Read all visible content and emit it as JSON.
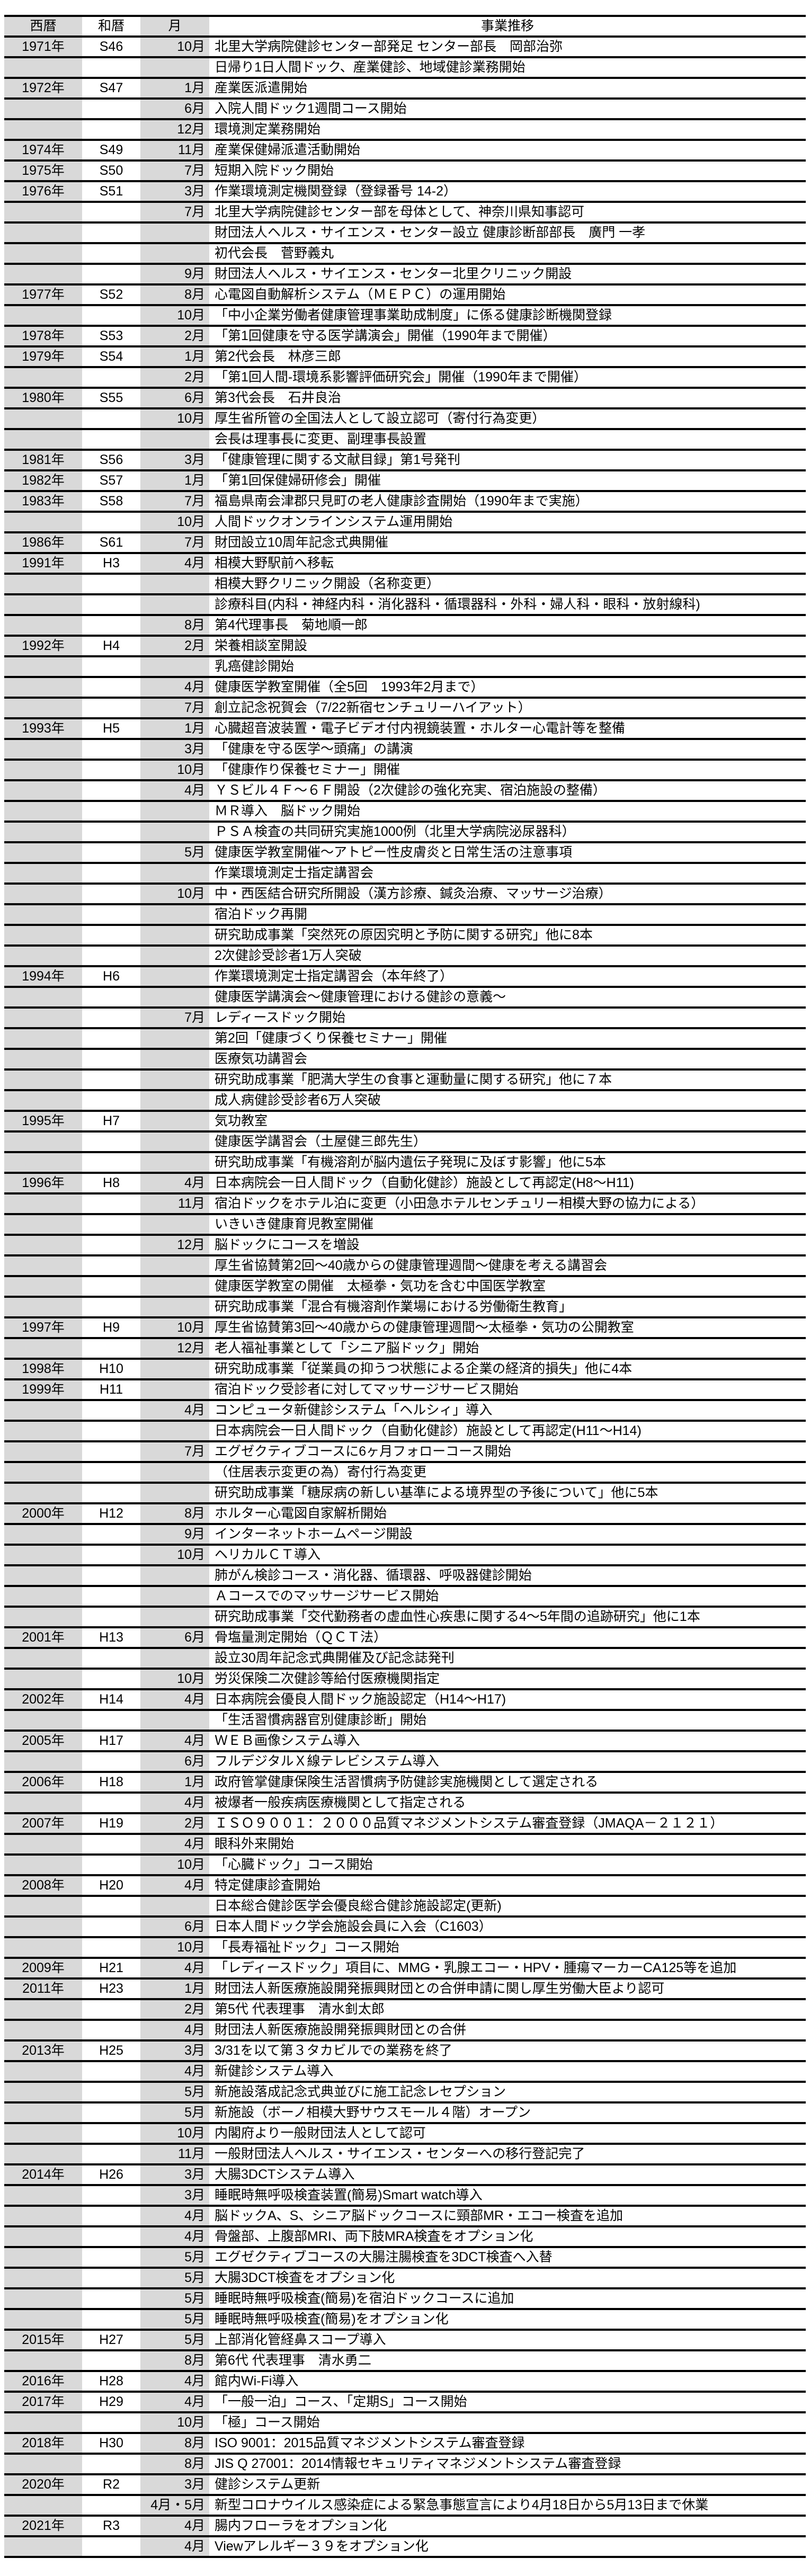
{
  "header": {
    "columns": [
      "西暦",
      "和暦",
      "月",
      "事業推移"
    ]
  },
  "rows": [
    {
      "year": "1971年",
      "era": "S46",
      "month": "10月",
      "text": "北里大学病院健診センター部発足 センター部長　岡部治弥"
    },
    {
      "year": "",
      "era": "",
      "month": "",
      "text": "日帰り1日人間ドック、産業健診、地域健診業務開始"
    },
    {
      "year": "1972年",
      "era": "S47",
      "month": "1月",
      "text": "産業医派遣開始"
    },
    {
      "year": "",
      "era": "",
      "month": "6月",
      "text": "入院人間ドック1週間コース開始"
    },
    {
      "year": "",
      "era": "",
      "month": "12月",
      "text": "環境測定業務開始"
    },
    {
      "year": "1974年",
      "era": "S49",
      "month": "11月",
      "text": "産業保健婦派遣活動開始"
    },
    {
      "year": "1975年",
      "era": "S50",
      "month": "7月",
      "text": "短期入院ドック開始"
    },
    {
      "year": "1976年",
      "era": "S51",
      "month": "3月",
      "text": "作業環境測定機関登録（登録番号 14-2）"
    },
    {
      "year": "",
      "era": "",
      "month": "7月",
      "text": "北里大学病院健診センター部を母体として、神奈川県知事認可"
    },
    {
      "year": "",
      "era": "",
      "month": "",
      "text": "財団法人ヘルス・サイエンス・センター設立 健康診断部部長　廣門 一孝"
    },
    {
      "year": "",
      "era": "",
      "month": "",
      "text": "初代会長　菅野義丸"
    },
    {
      "year": "",
      "era": "",
      "month": "9月",
      "text": "財団法人ヘルス・サイエンス・センター北里クリニック開設"
    },
    {
      "year": "1977年",
      "era": "S52",
      "month": "8月",
      "text": "心電図自動解析システム（ＭＥＰＣ）の運用開始"
    },
    {
      "year": "",
      "era": "",
      "month": "10月",
      "text": "「中小企業労働者健康管理事業助成制度」に係る健康診断機関登録"
    },
    {
      "year": "1978年",
      "era": "S53",
      "month": "2月",
      "text": "「第1回健康を守る医学講演会」開催（1990年まで開催）"
    },
    {
      "year": "1979年",
      "era": "S54",
      "month": "1月",
      "text": "第2代会長　林彦三郎"
    },
    {
      "year": "",
      "era": "",
      "month": "2月",
      "text": "「第1回人間-環境系影響評価研究会」開催（1990年まで開催）"
    },
    {
      "year": "1980年",
      "era": "S55",
      "month": "6月",
      "text": "第3代会長　石井良治"
    },
    {
      "year": "",
      "era": "",
      "month": "10月",
      "text": "厚生省所管の全国法人として設立認可（寄付行為変更）"
    },
    {
      "year": "",
      "era": "",
      "month": "",
      "text": "会長は理事長に変更、副理事長設置"
    },
    {
      "year": "1981年",
      "era": "S56",
      "month": "3月",
      "text": "「健康管理に関する文献目録」第1号発刊"
    },
    {
      "year": "1982年",
      "era": "S57",
      "month": "1月",
      "text": "「第1回保健婦研修会」開催"
    },
    {
      "year": "1983年",
      "era": "S58",
      "month": "7月",
      "text": "福島県南会津郡只見町の老人健康診査開始（1990年まで実施）"
    },
    {
      "year": "",
      "era": "",
      "month": "10月",
      "text": "人間ドックオンラインシステム運用開始"
    },
    {
      "year": "1986年",
      "era": "S61",
      "month": "7月",
      "text": "財団設立10周年記念式典開催"
    },
    {
      "year": "1991年",
      "era": "H3",
      "month": "4月",
      "text": "相模大野駅前へ移転"
    },
    {
      "year": "",
      "era": "",
      "month": "",
      "text": "相模大野クリニック開設（名称変更）"
    },
    {
      "year": "",
      "era": "",
      "month": "",
      "text": "診療科目(内科・神経内科・消化器科・循環器科・外科・婦人科・眼科・放射線科)"
    },
    {
      "year": "",
      "era": "",
      "month": "8月",
      "text": "第4代理事長　菊地順一郎"
    },
    {
      "year": "1992年",
      "era": "H4",
      "month": "2月",
      "text": "栄養相談室開設"
    },
    {
      "year": "",
      "era": "",
      "month": "",
      "text": "乳癌健診開始"
    },
    {
      "year": "",
      "era": "",
      "month": "4月",
      "text": "健康医学教室開催（全5回　1993年2月まで）"
    },
    {
      "year": "",
      "era": "",
      "month": "7月",
      "text": "創立記念祝賀会（7/22新宿センチュリーハイアット）"
    },
    {
      "year": "1993年",
      "era": "H5",
      "month": "1月",
      "text": "心臓超音波装置・電子ビデオ付内視鏡装置・ホルター心電計等を整備"
    },
    {
      "year": "",
      "era": "",
      "month": "3月",
      "text": "「健康を守る医学〜頭痛」の講演"
    },
    {
      "year": "",
      "era": "",
      "month": "10月",
      "text": "「健康作り保養セミナー」開催"
    },
    {
      "year": "",
      "era": "",
      "month": "4月",
      "text": "ＹＳビル４Ｆ〜６Ｆ開設（2次健診の強化充実、宿泊施設の整備）"
    },
    {
      "year": "",
      "era": "",
      "month": "",
      "text": "ＭＲ導入　脳ドック開始"
    },
    {
      "year": "",
      "era": "",
      "month": "",
      "text": "ＰＳＡ検査の共同研究実施1000例（北里大学病院泌尿器科）"
    },
    {
      "year": "",
      "era": "",
      "month": "5月",
      "text": "健康医学教室開催〜アトピー性皮膚炎と日常生活の注意事項"
    },
    {
      "year": "",
      "era": "",
      "month": "",
      "text": "作業環境測定士指定講習会"
    },
    {
      "year": "",
      "era": "",
      "month": "10月",
      "text": "中・西医結合研究所開設（漢方診療、鍼灸治療、マッサージ治療）"
    },
    {
      "year": "",
      "era": "",
      "month": "",
      "text": "宿泊ドック再開"
    },
    {
      "year": "",
      "era": "",
      "month": "",
      "text": "研究助成事業「突然死の原因究明と予防に関する研究」他に8本"
    },
    {
      "year": "",
      "era": "",
      "month": "",
      "text": "2次健診受診者1万人突破"
    },
    {
      "year": "1994年",
      "era": "H6",
      "month": "",
      "text": "作業環境測定士指定講習会（本年終了）"
    },
    {
      "year": "",
      "era": "",
      "month": "",
      "text": "健康医学講演会〜健康管理における健診の意義〜"
    },
    {
      "year": "",
      "era": "",
      "month": "7月",
      "text": "レディースドック開始"
    },
    {
      "year": "",
      "era": "",
      "month": "",
      "text": "第2回「健康づくり保養セミナー」開催"
    },
    {
      "year": "",
      "era": "",
      "month": "",
      "text": "医療気功講習会"
    },
    {
      "year": "",
      "era": "",
      "month": "",
      "text": "研究助成事業「肥満大学生の食事と運動量に関する研究」他に７本"
    },
    {
      "year": "",
      "era": "",
      "month": "",
      "text": "成人病健診受診者6万人突破"
    },
    {
      "year": "1995年",
      "era": "H7",
      "month": "",
      "text": "気功教室"
    },
    {
      "year": "",
      "era": "",
      "month": "",
      "text": "健康医学講習会（土屋健三郎先生）"
    },
    {
      "year": "",
      "era": "",
      "month": "",
      "text": "研究助成事業「有機溶剤が脳内遺伝子発現に及ぼす影響」他に5本"
    },
    {
      "year": "1996年",
      "era": "H8",
      "month": "4月",
      "text": "日本病院会一日人間ドック（自動化健診）施設として再認定(H8〜H11)"
    },
    {
      "year": "",
      "era": "",
      "month": "11月",
      "text": "宿泊ドックをホテル泊に変更（小田急ホテルセンチュリー相模大野の協力による）"
    },
    {
      "year": "",
      "era": "",
      "month": "",
      "text": "いきいき健康育児教室開催"
    },
    {
      "year": "",
      "era": "",
      "month": "12月",
      "text": "脳ドックにコースを増設"
    },
    {
      "year": "",
      "era": "",
      "month": "",
      "text": "厚生省協賛第2回〜40歳からの健康管理週間〜健康を考える講習会"
    },
    {
      "year": "",
      "era": "",
      "month": "",
      "text": "健康医学教室の開催　太極拳・気功を含む中国医学教室"
    },
    {
      "year": "",
      "era": "",
      "month": "",
      "text": "研究助成事業「混合有機溶剤作業場における労働衛生教育」"
    },
    {
      "year": "1997年",
      "era": "H9",
      "month": "10月",
      "text": "厚生省協賛第3回〜40歳からの健康管理週間〜太極拳・気功の公開教室"
    },
    {
      "year": "",
      "era": "",
      "month": "12月",
      "text": "老人福祉事業として「シニア脳ドック」開始"
    },
    {
      "year": "1998年",
      "era": "H10",
      "month": "",
      "text": "研究助成事業「従業員の抑うつ状態による企業の経済的損失」他に4本"
    },
    {
      "year": "1999年",
      "era": "H11",
      "month": "",
      "text": "宿泊ドック受診者に対してマッサージサービス開始"
    },
    {
      "year": "",
      "era": "",
      "month": "4月",
      "text": "コンピュータ新健診システム「ヘルシィ」導入"
    },
    {
      "year": "",
      "era": "",
      "month": "",
      "text": "日本病院会一日人間ドック（自動化健診）施設として再認定(H11〜H14)"
    },
    {
      "year": "",
      "era": "",
      "month": "7月",
      "text": "エグゼクティブコースに6ヶ月フォローコース開始"
    },
    {
      "year": "",
      "era": "",
      "month": "",
      "text": "（住居表示変更の為）寄付行為変更"
    },
    {
      "year": "",
      "era": "",
      "month": "",
      "text": "研究助成事業「糖尿病の新しい基準による境界型の予後について」他に5本"
    },
    {
      "year": "2000年",
      "era": "H12",
      "month": "8月",
      "text": "ホルター心電図自家解析開始"
    },
    {
      "year": "",
      "era": "",
      "month": "9月",
      "text": "インターネットホームページ開設"
    },
    {
      "year": "",
      "era": "",
      "month": "10月",
      "text": "ヘリカルＣＴ導入"
    },
    {
      "year": "",
      "era": "",
      "month": "",
      "text": "肺がん検診コース・消化器、循環器、呼吸器健診開始"
    },
    {
      "year": "",
      "era": "",
      "month": "",
      "text": "Ａコースでのマッサージサービス開始"
    },
    {
      "year": "",
      "era": "",
      "month": "",
      "text": "研究助成事業「交代勤務者の虚血性心疾患に関する4〜5年間の追跡研究」他に1本"
    },
    {
      "year": "2001年",
      "era": "H13",
      "month": "6月",
      "text": "骨塩量測定開始（ＱＣＴ法）"
    },
    {
      "year": "",
      "era": "",
      "month": "",
      "text": "設立30周年記念式典開催及び記念誌発刊"
    },
    {
      "year": "",
      "era": "",
      "month": "10月",
      "text": "労災保険二次健診等給付医療機関指定"
    },
    {
      "year": "2002年",
      "era": "H14",
      "month": "4月",
      "text": "日本病院会優良人間ドック施設認定（H14〜H17)"
    },
    {
      "year": "",
      "era": "",
      "month": "",
      "text": "「生活習慣病器官別健康診断」開始"
    },
    {
      "year": "2005年",
      "era": "H17",
      "month": "4月",
      "text": "ＷＥＢ画像システム導入"
    },
    {
      "year": "",
      "era": "",
      "month": "6月",
      "text": "フルデジタルＸ線テレビシステム導入"
    },
    {
      "year": "2006年",
      "era": "H18",
      "month": "1月",
      "text": "政府管掌健康保険生活習慣病予防健診実施機関として選定される"
    },
    {
      "year": "",
      "era": "",
      "month": "4月",
      "text": "被爆者一般疾病医療機関として指定される"
    },
    {
      "year": "2007年",
      "era": "H19",
      "month": "2月",
      "text": "ＩＳＯ９００１：２０００品質マネジメントシステム審査登録（JMAQA－２１２１）"
    },
    {
      "year": "",
      "era": "",
      "month": "4月",
      "text": "眼科外来開始"
    },
    {
      "year": "",
      "era": "",
      "month": "10月",
      "text": "「心臓ドック」コース開始"
    },
    {
      "year": "2008年",
      "era": "H20",
      "month": "4月",
      "text": "特定健康診査開始"
    },
    {
      "year": "",
      "era": "",
      "month": "",
      "text": "日本総合健診医学会優良総合健診施設認定(更新)"
    },
    {
      "year": "",
      "era": "",
      "month": "6月",
      "text": "日本人間ドック学会施設会員に入会（C1603）"
    },
    {
      "year": "",
      "era": "",
      "month": "10月",
      "text": "「長寿福祉ドック」コース開始"
    },
    {
      "year": "2009年",
      "era": "H21",
      "month": "4月",
      "text": "「レディースドック」項目に、MMG・乳腺エコー・HPV・腫瘍マーカーCA125等を追加"
    },
    {
      "year": "2011年",
      "era": "H23",
      "month": "1月",
      "text": "財団法人新医療施設開発振興財団との合併申請に関し厚生労働大臣より認可"
    },
    {
      "year": "",
      "era": "",
      "month": "2月",
      "text": "第5代 代表理事　清水釗太郎"
    },
    {
      "year": "",
      "era": "",
      "month": "4月",
      "text": "財団法人新医療施設開発振興財団との合併"
    },
    {
      "year": "2013年",
      "era": "H25",
      "month": "3月",
      "text": "3/31を以て第３タカビルでの業務を終了"
    },
    {
      "year": "",
      "era": "",
      "month": "4月",
      "text": "新健診システム導入"
    },
    {
      "year": "",
      "era": "",
      "month": "5月",
      "text": "新施設落成記念式典並びに施工記念レセプション"
    },
    {
      "year": "",
      "era": "",
      "month": "5月",
      "text": "新施設（ボーノ相模大野サウスモール４階）オープン"
    },
    {
      "year": "",
      "era": "",
      "month": "10月",
      "text": "内閣府より一般財団法人として認可"
    },
    {
      "year": "",
      "era": "",
      "month": "11月",
      "text": "一般財団法人ヘルス・サイエンス・センターへの移行登記完了"
    },
    {
      "year": "2014年",
      "era": "H26",
      "month": "3月",
      "text": "大腸3DCTシステム導入"
    },
    {
      "year": "",
      "era": "",
      "month": "3月",
      "text": "睡眠時無呼吸検査装置(簡易)Smart watch導入"
    },
    {
      "year": "",
      "era": "",
      "month": "4月",
      "text": "脳ドックA、S、シニア脳ドックコースに頸部MR・エコー検査を追加"
    },
    {
      "year": "",
      "era": "",
      "month": "4月",
      "text": "骨盤部、上腹部MRI、両下肢MRA検査をオプション化"
    },
    {
      "year": "",
      "era": "",
      "month": "5月",
      "text": "エグゼクティブコースの大腸注腸検査を3DCT検査へ入替"
    },
    {
      "year": "",
      "era": "",
      "month": "5月",
      "text": "大腸3DCT検査をオプション化"
    },
    {
      "year": "",
      "era": "",
      "month": "5月",
      "text": "睡眠時無呼吸検査(簡易)を宿泊ドックコースに追加"
    },
    {
      "year": "",
      "era": "",
      "month": "5月",
      "text": "睡眠時無呼吸検査(簡易)をオプション化"
    },
    {
      "year": "2015年",
      "era": "H27",
      "month": "5月",
      "text": "上部消化管経鼻スコープ導入"
    },
    {
      "year": "",
      "era": "",
      "month": "8月",
      "text": "第6代 代表理事　清水勇二"
    },
    {
      "year": "2016年",
      "era": "H28",
      "month": "4月",
      "text": "館内Wi-Fi導入"
    },
    {
      "year": "2017年",
      "era": "H29",
      "month": "4月",
      "text": "「一般一泊」コース、「定期S」コース開始"
    },
    {
      "year": "",
      "era": "",
      "month": "10月",
      "text": "「極」コース開始"
    },
    {
      "year": "2018年",
      "era": "H30",
      "month": "8月",
      "text": "ISO 9001：2015品質マネジメントシステム審査登録"
    },
    {
      "year": "",
      "era": "",
      "month": "8月",
      "text": "JIS Q 27001：2014情報セキュリティマネジメントシステム審査登録"
    },
    {
      "year": "2020年",
      "era": "R2",
      "month": "3月",
      "text": "健診システム更新"
    },
    {
      "year": "",
      "era": "",
      "month": "4月・5月",
      "text": "新型コロナウイルス感染症による緊急事態宣言により4月18日から5月13日まで休業"
    },
    {
      "year": "2021年",
      "era": "R3",
      "month": "4月",
      "text": "腸内フローラをオプション化"
    },
    {
      "year": "",
      "era": "",
      "month": "4月",
      "text": "Viewアレルギー３９をオプション化"
    }
  ]
}
